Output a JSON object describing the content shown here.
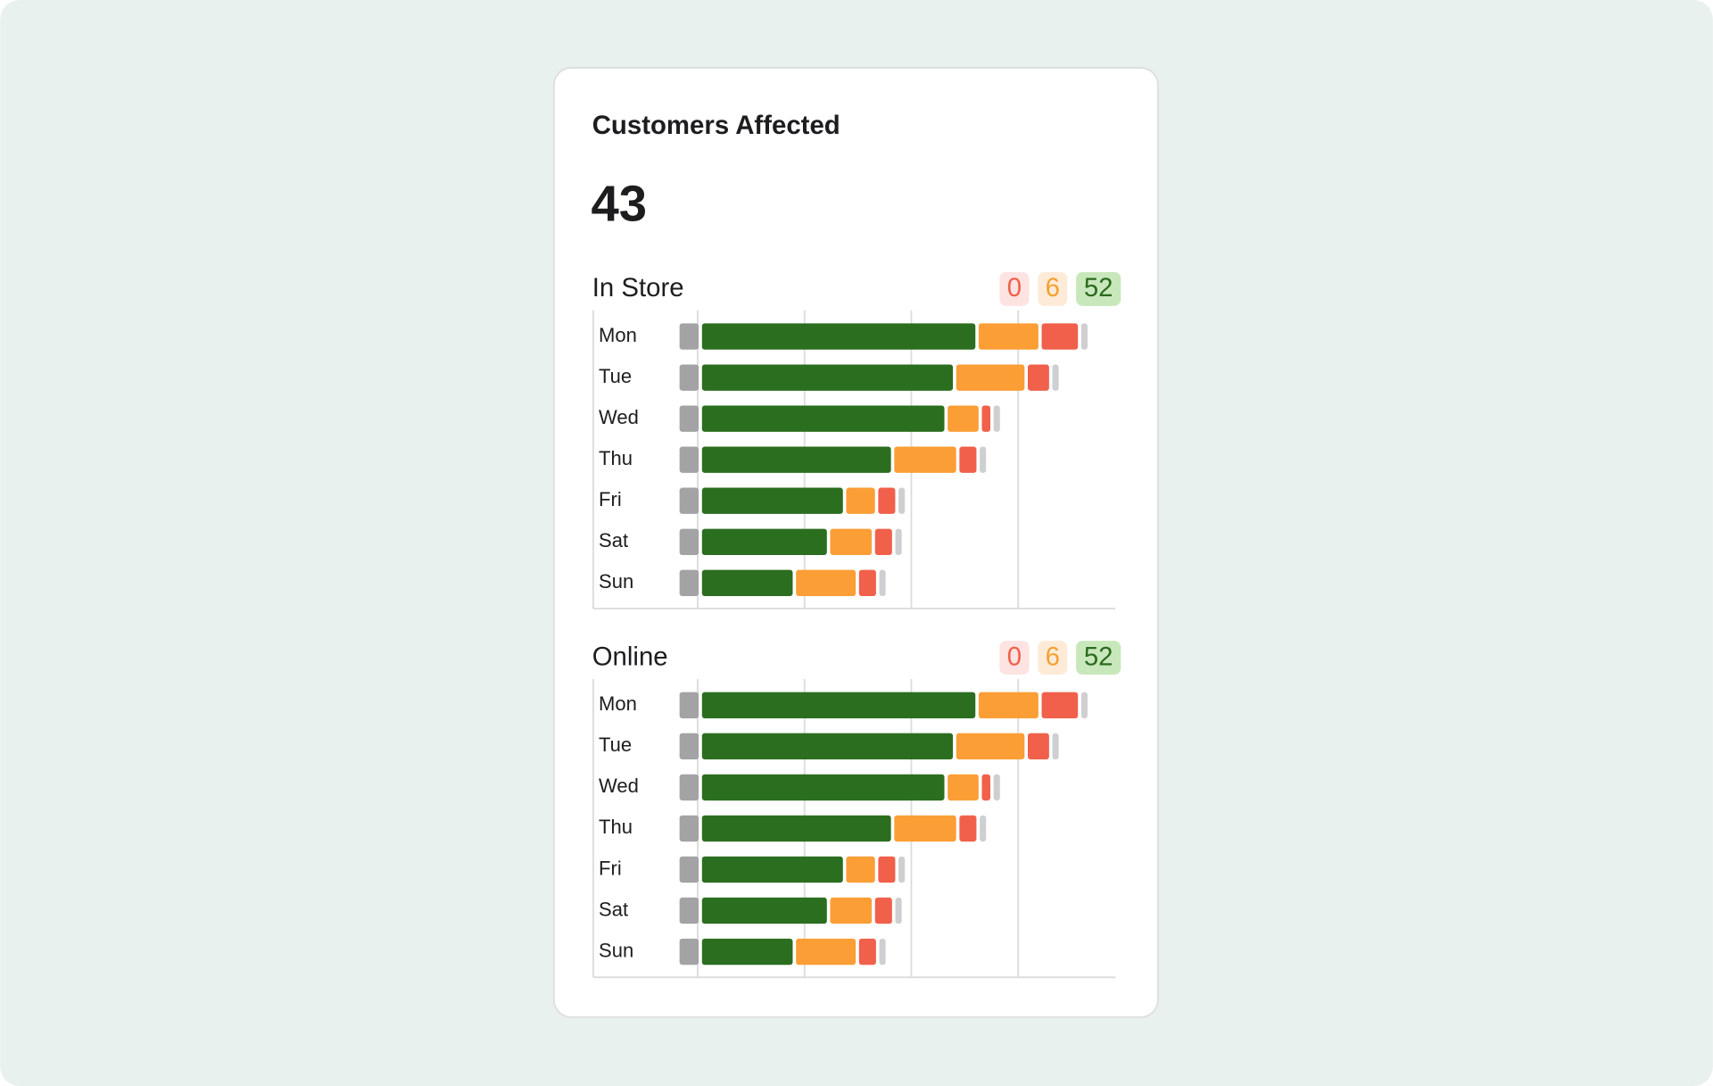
{
  "header": {
    "title": "Customers Affected",
    "value": 43
  },
  "chart_data": [
    {
      "type": "bar",
      "orientation": "horizontal",
      "stacked": true,
      "title": "In Store",
      "badges": [
        {
          "value": 0,
          "color": "#f0604a",
          "background": "#fde3e1"
        },
        {
          "value": 6,
          "color": "#f5a030",
          "background": "#fdebd8"
        },
        {
          "value": 52,
          "color": "#2d6a1f",
          "background": "#c8e8bb"
        }
      ],
      "categories": [
        "Mon",
        "Tue",
        "Wed",
        "Thu",
        "Fri",
        "Sat",
        "Sun"
      ],
      "series": [
        {
          "color": "#a3a3a6",
          "values": [
            2.1,
            2.1,
            2.1,
            2.1,
            2.1,
            2.1,
            2.1
          ]
        },
        {
          "color": "#2b6e1f",
          "values": [
            25.9,
            23.8,
            23.0,
            18.0,
            13.5,
            12.0,
            8.8
          ]
        },
        {
          "color": "#fb9e35",
          "values": [
            5.9,
            6.7,
            3.2,
            6.1,
            3.0,
            4.2,
            5.9
          ]
        },
        {
          "color": "#f0604a",
          "values": [
            3.7,
            2.3,
            1.1,
            1.9,
            1.9,
            1.9,
            1.9
          ]
        },
        {
          "color": "#cfcfd2",
          "values": [
            0.9,
            0.9,
            0.9,
            0.9,
            0.9,
            0.9,
            0.9
          ]
        }
      ],
      "xlim": [
        0,
        40.8
      ],
      "gridlines": [
        1.7,
        11.7,
        21.7,
        31.7
      ]
    },
    {
      "type": "bar",
      "orientation": "horizontal",
      "stacked": true,
      "title": "Online",
      "badges": [
        {
          "value": 0,
          "color": "#f0604a",
          "background": "#fde3e1"
        },
        {
          "value": 6,
          "color": "#f5a030",
          "background": "#fdebd8"
        },
        {
          "value": 52,
          "color": "#2d6a1f",
          "background": "#c8e8bb"
        }
      ],
      "categories": [
        "Mon",
        "Tue",
        "Wed",
        "Thu",
        "Fri",
        "Sat",
        "Sun"
      ],
      "series": [
        {
          "color": "#a3a3a6",
          "values": [
            2.1,
            2.1,
            2.1,
            2.1,
            2.1,
            2.1,
            2.1
          ]
        },
        {
          "color": "#2b6e1f",
          "values": [
            25.9,
            23.8,
            23.0,
            18.0,
            13.5,
            12.0,
            8.8
          ]
        },
        {
          "color": "#fb9e35",
          "values": [
            5.9,
            6.7,
            3.2,
            6.1,
            3.0,
            4.2,
            5.9
          ]
        },
        {
          "color": "#f0604a",
          "values": [
            3.7,
            2.3,
            1.1,
            1.9,
            1.9,
            1.9,
            1.9
          ]
        },
        {
          "color": "#cfcfd2",
          "values": [
            0.9,
            0.9,
            0.9,
            0.9,
            0.9,
            0.9,
            0.9
          ]
        }
      ],
      "xlim": [
        0,
        40.8
      ],
      "gridlines": [
        1.7,
        11.7,
        21.7,
        31.7
      ]
    }
  ]
}
